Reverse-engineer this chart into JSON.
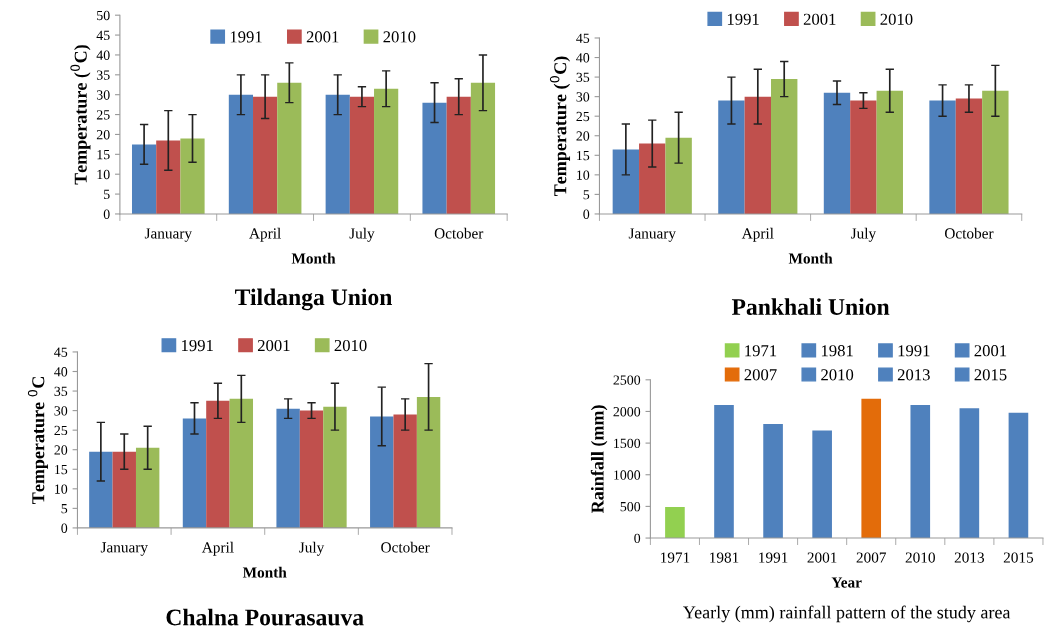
{
  "chart_data": [
    {
      "type": "bar",
      "title": "Tildanga Union",
      "xlabel": "Month",
      "ylabel": "Temperature ($^{0}$C)",
      "categories": [
        "January",
        "April",
        "July",
        "October"
      ],
      "ylim": [
        0,
        50
      ],
      "yticks": [
        0,
        5,
        10,
        15,
        20,
        25,
        30,
        35,
        40,
        45,
        50
      ],
      "grid": false,
      "legend": "top",
      "series": [
        {
          "name": "1991",
          "color": "#4f81bd",
          "values": [
            17.5,
            30,
            30,
            28
          ],
          "errors": [
            [
              12.5,
              22.5
            ],
            [
              25,
              35
            ],
            [
              25,
              35
            ],
            [
              23,
              33
            ]
          ]
        },
        {
          "name": "2001",
          "color": "#c0504d",
          "values": [
            18.5,
            29.5,
            29.5,
            29.5
          ],
          "errors": [
            [
              11,
              26
            ],
            [
              24,
              35
            ],
            [
              27,
              32
            ],
            [
              25,
              34
            ]
          ]
        },
        {
          "name": "2010",
          "color": "#9bbb59",
          "values": [
            19,
            33,
            31.5,
            33
          ],
          "errors": [
            [
              13,
              25
            ],
            [
              28,
              38
            ],
            [
              27,
              36
            ],
            [
              26,
              40
            ]
          ]
        }
      ]
    },
    {
      "type": "bar",
      "title": "Pankhali Union",
      "xlabel": "Month",
      "ylabel": "Temperature ($^{0}$C)",
      "categories": [
        "January",
        "April",
        "July",
        "October"
      ],
      "ylim": [
        0,
        45
      ],
      "yticks": [
        0,
        5,
        10,
        15,
        20,
        25,
        30,
        35,
        40,
        45
      ],
      "grid": false,
      "legend": "top",
      "series": [
        {
          "name": "1991",
          "color": "#4f81bd",
          "values": [
            16.5,
            29,
            31,
            29
          ],
          "errors": [
            [
              10,
              23
            ],
            [
              23,
              35
            ],
            [
              28,
              34
            ],
            [
              25,
              33
            ]
          ]
        },
        {
          "name": "2001",
          "color": "#c0504d",
          "values": [
            18,
            30,
            29,
            29.5
          ],
          "errors": [
            [
              12,
              24
            ],
            [
              23,
              37
            ],
            [
              27,
              31
            ],
            [
              26,
              33
            ]
          ]
        },
        {
          "name": "2010",
          "color": "#9bbb59",
          "values": [
            19.5,
            34.5,
            31.5,
            31.5
          ],
          "errors": [
            [
              13,
              26
            ],
            [
              30,
              39
            ],
            [
              26,
              37
            ],
            [
              25,
              38
            ]
          ]
        }
      ]
    },
    {
      "type": "bar",
      "title": "Chalna Pourasauva",
      "xlabel": "Month",
      "ylabel": "Temperature $^{0}$C",
      "categories": [
        "January",
        "April",
        "July",
        "October"
      ],
      "ylim": [
        0,
        45
      ],
      "yticks": [
        0,
        5,
        10,
        15,
        20,
        25,
        30,
        35,
        40,
        45
      ],
      "grid": false,
      "legend": "top",
      "series": [
        {
          "name": "1991",
          "color": "#4f81bd",
          "values": [
            19.5,
            28,
            30.5,
            28.5
          ],
          "errors": [
            [
              12,
              27
            ],
            [
              24,
              32
            ],
            [
              28,
              33
            ],
            [
              21,
              36
            ]
          ]
        },
        {
          "name": "2001",
          "color": "#c0504d",
          "values": [
            19.5,
            32.5,
            30,
            29
          ],
          "errors": [
            [
              15,
              24
            ],
            [
              28,
              37
            ],
            [
              28,
              32
            ],
            [
              25,
              33
            ]
          ]
        },
        {
          "name": "2010",
          "color": "#9bbb59",
          "values": [
            20.5,
            33,
            31,
            33.5
          ],
          "errors": [
            [
              15,
              26
            ],
            [
              27,
              39
            ],
            [
              25,
              37
            ],
            [
              25,
              42
            ]
          ]
        }
      ]
    },
    {
      "type": "bar",
      "title": "Yearly (mm) rainfall pattern of the study area",
      "xlabel": "Year",
      "ylabel": "Rainfall (mm)",
      "categories": [
        "1971",
        "1981",
        "1991",
        "2001",
        "2007",
        "2010",
        "2013",
        "2015"
      ],
      "ylim": [
        0,
        2500
      ],
      "yticks": [
        0,
        500,
        1000,
        1500,
        2000,
        2500
      ],
      "grid": false,
      "legend": "top",
      "stacked": true,
      "series": [
        {
          "name": "1971",
          "color": "#92d050",
          "values": [
            490,
            null,
            null,
            null,
            null,
            null,
            null,
            null
          ]
        },
        {
          "name": "1981",
          "color": "#4f81bd",
          "values": [
            null,
            2100,
            null,
            null,
            null,
            null,
            null,
            null
          ]
        },
        {
          "name": "1991",
          "color": "#4f81bd",
          "values": [
            null,
            null,
            1800,
            null,
            null,
            null,
            null,
            null
          ]
        },
        {
          "name": "2001",
          "color": "#4f81bd",
          "values": [
            null,
            null,
            null,
            1700,
            null,
            null,
            null,
            null
          ]
        },
        {
          "name": "2007",
          "color": "#e36c0a",
          "values": [
            null,
            null,
            null,
            null,
            2200,
            null,
            null,
            null
          ]
        },
        {
          "name": "2010",
          "color": "#4f81bd",
          "values": [
            null,
            null,
            null,
            null,
            null,
            2100,
            null,
            null
          ]
        },
        {
          "name": "2013",
          "color": "#4f81bd",
          "values": [
            null,
            null,
            null,
            null,
            null,
            null,
            2050,
            null
          ]
        },
        {
          "name": "2015",
          "color": "#4f81bd",
          "values": [
            null,
            null,
            null,
            null,
            null,
            null,
            null,
            1980
          ]
        }
      ]
    }
  ]
}
